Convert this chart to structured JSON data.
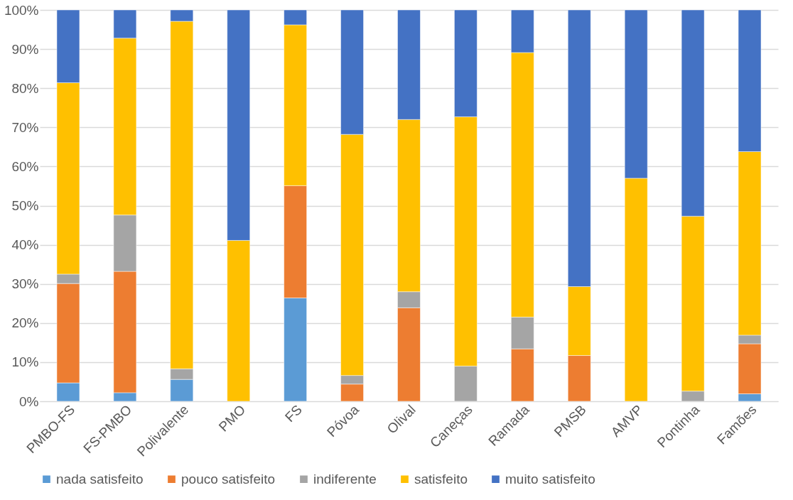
{
  "chart_data": {
    "type": "bar",
    "stacked": true,
    "categories": [
      "PMBO-FS",
      "FS-PMBO",
      "Polivalente",
      "PMO",
      "FS",
      "Póvoa",
      "Olival",
      "Caneças",
      "Ramada",
      "PMSB",
      "AMVP",
      "Pontinha",
      "Famões"
    ],
    "series": [
      {
        "name": "nada satisfeito",
        "color": "#5b9bd5",
        "values": [
          4.7,
          2.2,
          5.6,
          null,
          26.4,
          null,
          null,
          null,
          null,
          null,
          null,
          null,
          1.9
        ]
      },
      {
        "name": "pouco satisfeito",
        "color": "#ed7d31",
        "values": [
          25.4,
          31.0,
          null,
          null,
          28.7,
          4.4,
          23.9,
          null,
          13.4,
          11.7,
          null,
          null,
          12.8
        ]
      },
      {
        "name": "indiferente",
        "color": "#a5a5a5",
        "values": [
          2.4,
          14.4,
          2.7,
          null,
          null,
          2.2,
          4.1,
          9.0,
          8.1,
          null,
          null,
          2.6,
          2.2
        ]
      },
      {
        "name": "satisfeito",
        "color": "#ffc000",
        "values": [
          48.9,
          45.2,
          88.8,
          41.1,
          41.1,
          61.6,
          44.0,
          63.7,
          67.6,
          17.6,
          57.0,
          44.7,
          46.9
        ]
      },
      {
        "name": "muito satisfeito",
        "color": "#4472c4",
        "values": [
          18.6,
          7.2,
          2.9,
          58.9,
          3.8,
          31.8,
          28.0,
          27.3,
          10.9,
          70.7,
          43.0,
          52.7,
          36.2
        ]
      }
    ],
    "ylim": [
      0,
      100
    ],
    "yticks": [
      {
        "value": 0,
        "label": "0%"
      },
      {
        "value": 10,
        "label": "10%"
      },
      {
        "value": 20,
        "label": "20%"
      },
      {
        "value": 30,
        "label": "30%"
      },
      {
        "value": 40,
        "label": "40%"
      },
      {
        "value": 50,
        "label": "50%"
      },
      {
        "value": 60,
        "label": "60%"
      },
      {
        "value": 70,
        "label": "70%"
      },
      {
        "value": 80,
        "label": "80%"
      },
      {
        "value": 90,
        "label": "90%"
      },
      {
        "value": 100,
        "label": "100%"
      }
    ],
    "grid": "y",
    "legend": "bottom"
  }
}
